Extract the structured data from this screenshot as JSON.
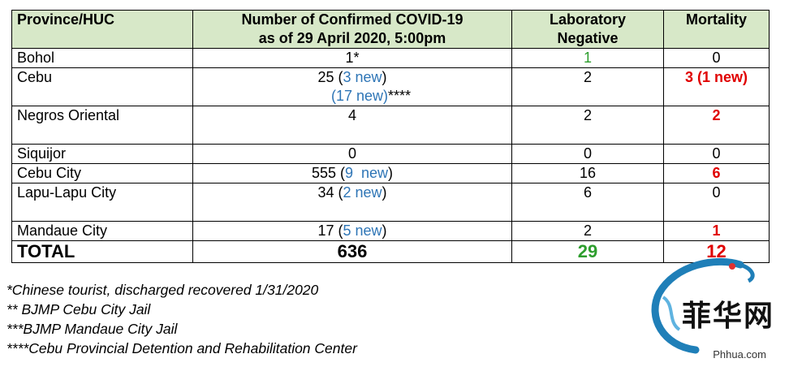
{
  "table": {
    "headers": {
      "province": "Province/HUC",
      "confirmed_line1": "Number of Confirmed COVID-19",
      "confirmed_line2": "as of 29 April 2020, 5:00pm",
      "negative_line1": "Laboratory",
      "negative_line2": "Negative",
      "mortality": "Mortality"
    },
    "rows": [
      {
        "province": "Bohol",
        "confirmed": "1*",
        "confirmed_new": "",
        "confirmed_tail": "",
        "negative": "1",
        "mortality": "0"
      },
      {
        "province": "Cebu",
        "confirmed": "25 (",
        "confirmed_new": "3 new",
        "confirmed_tail": ")",
        "confirmed_line2_new": "(17 new)",
        "confirmed_line2_tail": "****",
        "negative": "2",
        "mortality": "3 (1 new)"
      },
      {
        "province": "Negros Oriental",
        "confirmed": "4",
        "negative": "2",
        "mortality": "2"
      },
      {
        "province": "Siquijor",
        "confirmed": "0",
        "negative": "0",
        "mortality": "0"
      },
      {
        "province": "Cebu City",
        "confirmed": "555 (",
        "confirmed_new": "9  new",
        "confirmed_tail": ")",
        "negative": "16",
        "mortality": "6"
      },
      {
        "province": "Lapu-Lapu City",
        "confirmed": "34 (",
        "confirmed_new": "2 new",
        "confirmed_tail": ")",
        "negative": "6",
        "mortality": "0"
      },
      {
        "province": "Mandaue City",
        "confirmed": "17 (",
        "confirmed_new": "5 new",
        "confirmed_tail": ")",
        "negative": "2",
        "mortality": "1"
      }
    ],
    "total": {
      "label": "TOTAL",
      "confirmed": "636",
      "negative": "29",
      "mortality": "12"
    }
  },
  "footnotes": [
    "*Chinese tourist, discharged recovered 1/31/2020",
    "** BJMP Cebu City Jail",
    "***BJMP Mandaue City Jail",
    "****Cebu Provincial Detention and Rehabilitation Center"
  ],
  "watermark": {
    "logo_text": "菲华网",
    "url": "Phhua.com"
  },
  "colors": {
    "header_bg": "#d7e8c8",
    "new_blue": "#2e75b6",
    "negative_green": "#2e9e2e",
    "mortality_red": "#e00000"
  }
}
